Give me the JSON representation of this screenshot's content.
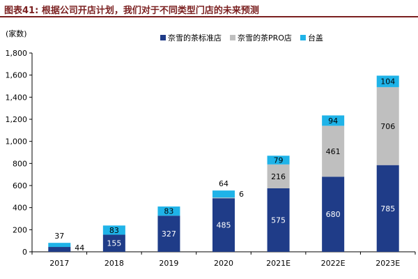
{
  "figure": {
    "title": "图表41:  根据公司开店计划，我们对于不同类型门店的未来预测"
  },
  "chart_data": {
    "type": "bar",
    "stacked": true,
    "title": "根据公司开店计划，我们对于不同类型门店的未来预测",
    "ylabel": "(家数)",
    "xlabel": "",
    "ylim": [
      0,
      1800
    ],
    "yticks": [
      0,
      200,
      400,
      600,
      800,
      1000,
      1200,
      1400,
      1600,
      1800
    ],
    "ytick_labels": [
      "0",
      "200",
      "400",
      "600",
      "800",
      "1,000",
      "1,200",
      "1,400",
      "1,600",
      "1,800"
    ],
    "categories": [
      "2017",
      "2018",
      "2019",
      "2020",
      "2021E",
      "2022E",
      "2023E"
    ],
    "series": [
      {
        "name": "奈雪的茶标准店",
        "color": "#1f3c88",
        "label_color": "#ffffff",
        "values": [
          44,
          155,
          327,
          485,
          575,
          680,
          785
        ]
      },
      {
        "name": "奈雪的茶PRO店",
        "color": "#bfbfbf",
        "label_color": "#000000",
        "values": [
          0,
          0,
          0,
          6,
          216,
          461,
          706
        ]
      },
      {
        "name": "台盖",
        "color": "#1fb3e8",
        "label_color": "#000000",
        "values": [
          37,
          83,
          83,
          64,
          79,
          94,
          104
        ]
      }
    ],
    "data_labels": [
      {
        "category": "2017",
        "series": "奈雪的茶标准店",
        "text": "44",
        "placement": "right"
      },
      {
        "category": "2017",
        "series": "台盖",
        "text": "37",
        "placement": "above"
      },
      {
        "category": "2018",
        "series": "奈雪的茶标准店",
        "text": "155",
        "placement": "inside"
      },
      {
        "category": "2018",
        "series": "台盖",
        "text": "83",
        "placement": "inside"
      },
      {
        "category": "2019",
        "series": "奈雪的茶标准店",
        "text": "327",
        "placement": "inside"
      },
      {
        "category": "2019",
        "series": "台盖",
        "text": "83",
        "placement": "inside"
      },
      {
        "category": "2020",
        "series": "奈雪的茶标准店",
        "text": "485",
        "placement": "inside"
      },
      {
        "category": "2020",
        "series": "奈雪的茶PRO店",
        "text": "6",
        "placement": "right"
      },
      {
        "category": "2020",
        "series": "台盖",
        "text": "64",
        "placement": "above"
      },
      {
        "category": "2021E",
        "series": "奈雪的茶标准店",
        "text": "575",
        "placement": "inside"
      },
      {
        "category": "2021E",
        "series": "奈雪的茶PRO店",
        "text": "216",
        "placement": "inside"
      },
      {
        "category": "2021E",
        "series": "台盖",
        "text": "79",
        "placement": "inside"
      },
      {
        "category": "2022E",
        "series": "奈雪的茶标准店",
        "text": "680",
        "placement": "inside"
      },
      {
        "category": "2022E",
        "series": "奈雪的茶PRO店",
        "text": "461",
        "placement": "inside"
      },
      {
        "category": "2022E",
        "series": "台盖",
        "text": "94",
        "placement": "inside"
      },
      {
        "category": "2023E",
        "series": "奈雪的茶标准店",
        "text": "785",
        "placement": "inside"
      },
      {
        "category": "2023E",
        "series": "奈雪的茶PRO店",
        "text": "706",
        "placement": "inside"
      },
      {
        "category": "2023E",
        "series": "台盖",
        "text": "104",
        "placement": "inside"
      }
    ],
    "legend": {
      "position": "top-right"
    },
    "grid": false
  }
}
